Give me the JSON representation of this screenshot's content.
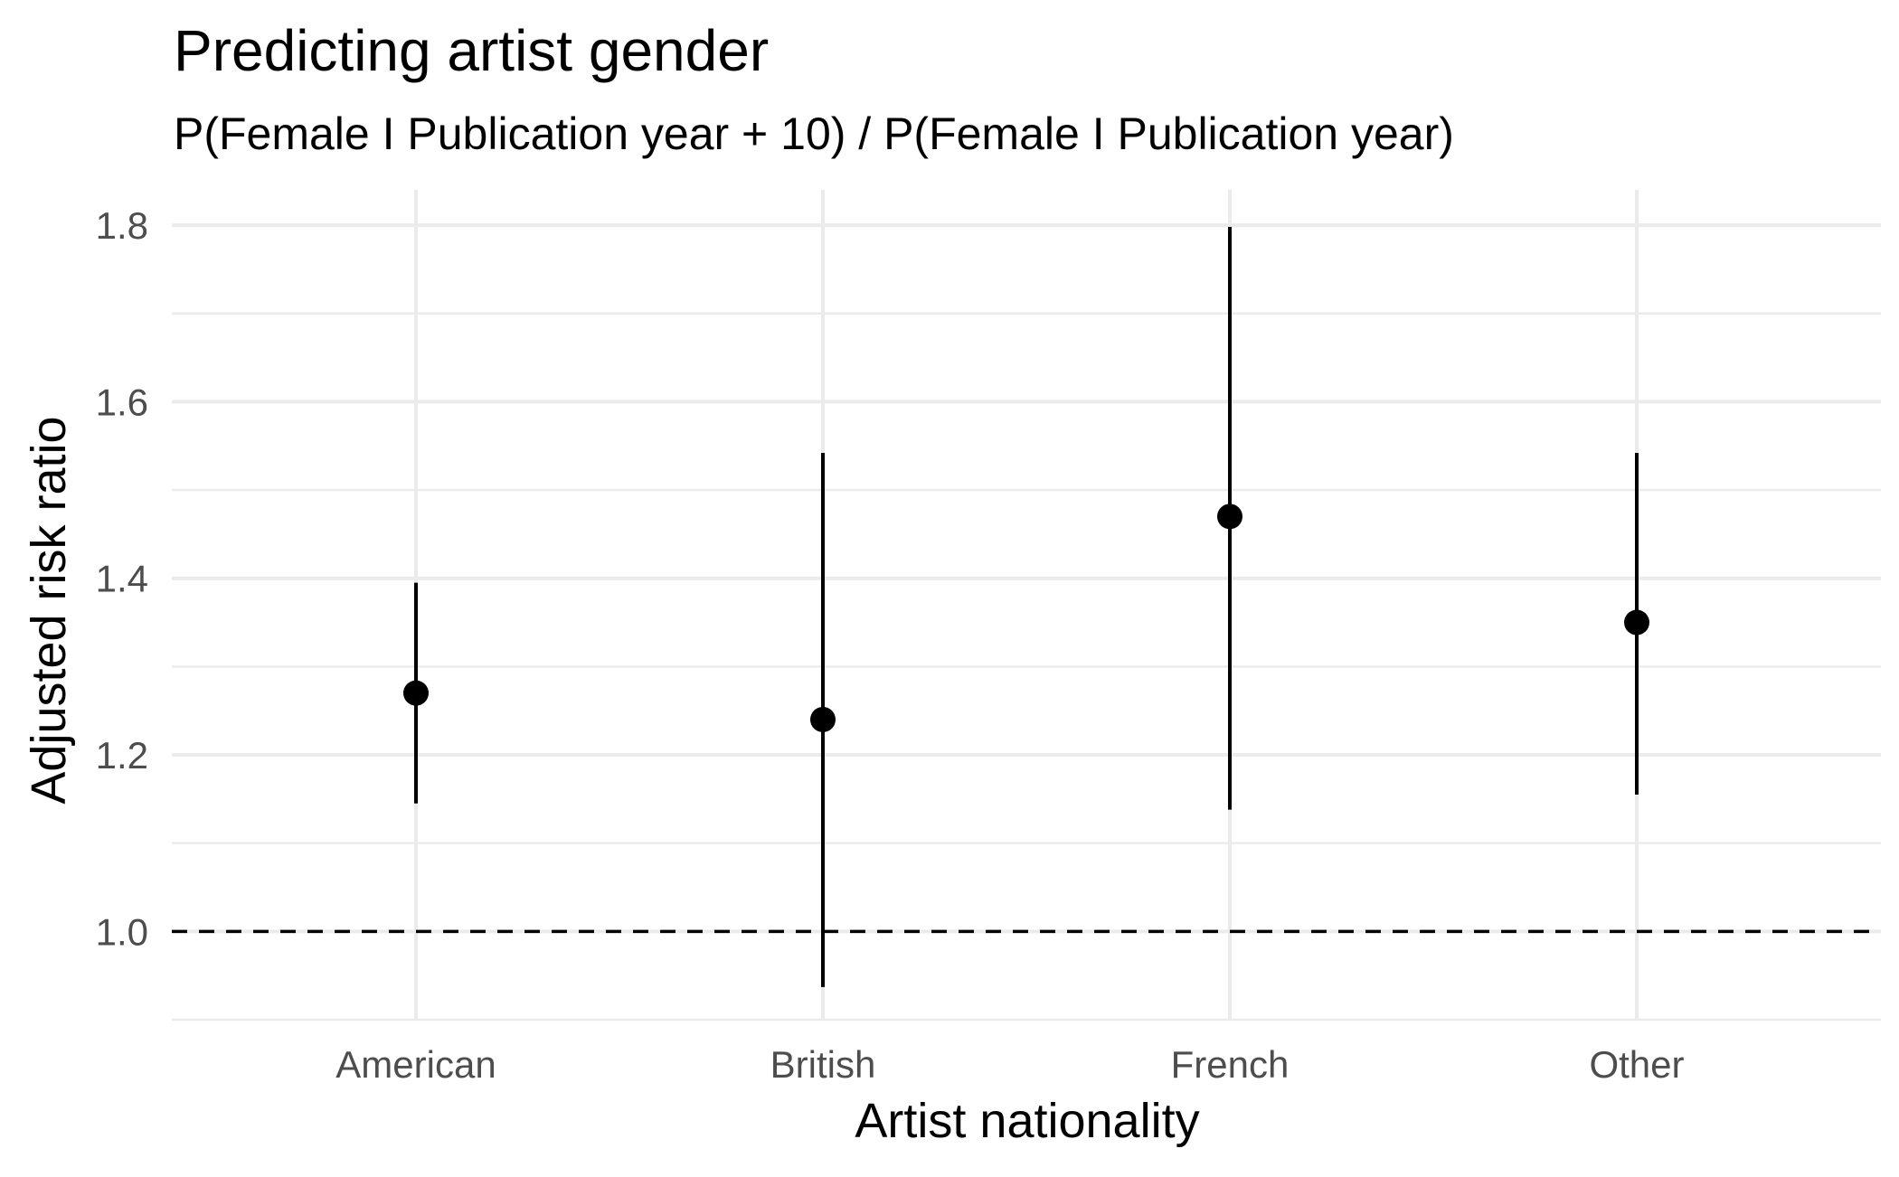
{
  "chart_data": {
    "type": "scatter",
    "title": "Predicting artist gender",
    "subtitle": "P(Female I Publication year + 10) / P(Female I Publication year)",
    "xlabel": "Artist nationality",
    "ylabel": "Adjusted risk ratio",
    "categories": [
      "American",
      "British",
      "French",
      "Other"
    ],
    "series": [
      {
        "estimates": [
          1.27,
          1.24,
          1.47,
          1.35
        ],
        "lower": [
          1.145,
          0.937,
          1.138,
          1.155
        ],
        "upper": [
          1.395,
          1.542,
          1.798,
          1.542
        ]
      }
    ],
    "reference_line": 1.0,
    "ylim": [
      0.9,
      1.84
    ],
    "y_ticks": [
      1.0,
      1.2,
      1.4,
      1.6,
      1.8
    ],
    "y_tick_labels": [
      "1.0",
      "1.2",
      "1.4",
      "1.6",
      "1.8"
    ],
    "grid": true,
    "legend": "none",
    "colors": {
      "points": "#000000",
      "grid": "#ebebeb",
      "tick_text": "#4d4d4d"
    }
  }
}
